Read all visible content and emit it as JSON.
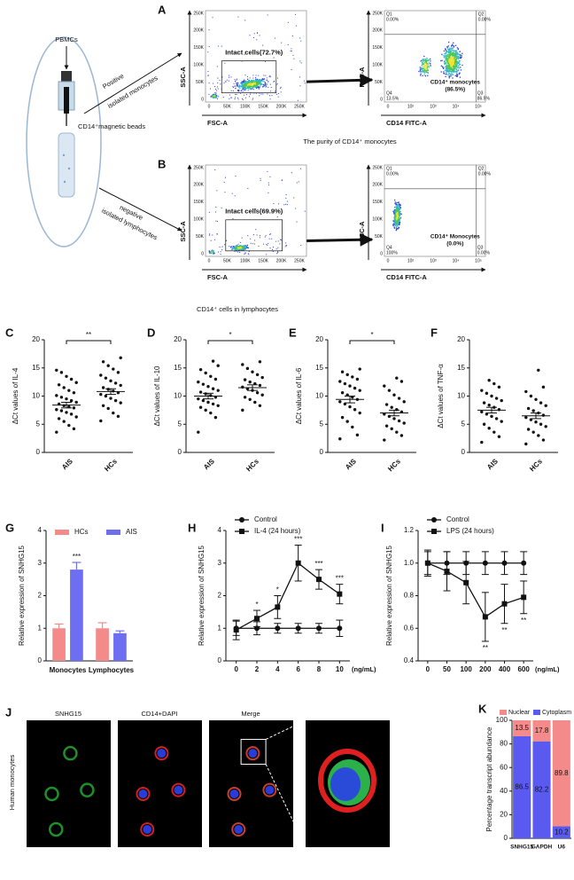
{
  "panel_labels": [
    "A",
    "B",
    "C",
    "D",
    "E",
    "F",
    "G",
    "H",
    "I",
    "J",
    "K"
  ],
  "diagram": {
    "source": "PBMCs",
    "positive": [
      "Positive",
      "isolated monocytes"
    ],
    "beads": "CD14⁺magnetic beads",
    "negative": [
      "negative",
      "isolated lymphocytes"
    ]
  },
  "flow": [
    {
      "caption": "The purity of CD14⁺ monocytes",
      "gate": {
        "label": "Intact cells(72.7%)",
        "xlabel": "FSC-A",
        "ylabel": "SSC-A",
        "xticks": [
          "0",
          "50K",
          "100K",
          "150K",
          "200K",
          "250K"
        ],
        "yticks": [
          "0",
          "50K",
          "100K",
          "150K",
          "200K",
          "250K"
        ]
      },
      "quad": {
        "xlabel": "CD14 FITC-A",
        "ylabel": "FSC-A",
        "xticks": [
          "0",
          "10²",
          "10³",
          "10⁴",
          "10⁵"
        ],
        "yticks": [
          "0",
          "50K",
          "100K",
          "150K",
          "200K",
          "250K"
        ],
        "quadrants": [
          {
            "name": "Q1",
            "value": "0.00%"
          },
          {
            "name": "Q2",
            "value": "0.00%"
          },
          {
            "name": "Q4",
            "value": "13.5%"
          },
          {
            "name": "Q3",
            "value": "86.5%"
          }
        ],
        "population": [
          "CD14⁺ monocytes",
          "(86.5%)"
        ]
      }
    },
    {
      "caption": "CD14⁺ cells in lymphocytes",
      "gate": {
        "label": "Intact cells(69.9%)",
        "xlabel": "FSC-A",
        "ylabel": "SSC-A",
        "xticks": [
          "0",
          "50K",
          "100K",
          "150K",
          "200K",
          "250K"
        ],
        "yticks": [
          "0",
          "50K",
          "100K",
          "150K",
          "200K",
          "250K"
        ]
      },
      "quad": {
        "xlabel": "CD14 FITC-A",
        "ylabel": "FSC-A",
        "xticks": [
          "0",
          "10²",
          "10³",
          "10⁴",
          "10⁵"
        ],
        "yticks": [
          "0",
          "50K",
          "100K",
          "150K",
          "200K",
          "250K"
        ],
        "quadrants": [
          {
            "name": "Q1",
            "value": "0.00%"
          },
          {
            "name": "Q2",
            "value": "0.00%"
          },
          {
            "name": "Q4",
            "value": "100%"
          },
          {
            "name": "Q3",
            "value": "0.00%"
          }
        ],
        "population": [
          "CD14⁺ Monocytes",
          "(0.0%)"
        ]
      }
    }
  ],
  "microscopy": {
    "columns": [
      "SNHG15",
      "CD14+DAPI",
      "Merge"
    ],
    "row": "Human monocytes"
  },
  "chart_data": [
    {
      "type": "dot",
      "ylabel": "ΔCt values of IL-4",
      "ylim": [
        0,
        20
      ],
      "yticks": [
        0,
        5,
        10,
        15,
        20
      ],
      "significance": "**",
      "groups": [
        {
          "name": "AIS",
          "values": [
            3.6,
            4.2,
            4.8,
            5.5,
            6,
            6.3,
            6.8,
            7.1,
            7.4,
            7.6,
            7.9,
            8.1,
            8.3,
            8.6,
            8.9,
            9.2,
            9.5,
            9.8,
            10.1,
            10.6,
            11,
            11.5,
            12,
            12.4,
            13,
            13.5,
            14.2,
            14.6
          ],
          "mean": 8.4,
          "sem": 0.5
        },
        {
          "name": "HCs",
          "values": [
            5.6,
            6.4,
            7,
            7.8,
            8.3,
            8.8,
            9.2,
            9.6,
            10,
            10.3,
            10.6,
            10.9,
            11.2,
            11.5,
            11.9,
            12.3,
            12.7,
            13.2,
            13.7,
            14.2,
            14.8,
            15.4,
            16.1,
            16.8
          ],
          "mean": 10.8,
          "sem": 0.5
        }
      ]
    },
    {
      "type": "dot",
      "ylabel": "ΔCt values of IL-10",
      "ylim": [
        0,
        20
      ],
      "yticks": [
        0,
        5,
        10,
        15,
        20
      ],
      "significance": "*",
      "groups": [
        {
          "name": "AIS",
          "values": [
            3.6,
            6.2,
            7,
            7.5,
            8,
            8.3,
            8.6,
            8.9,
            9.2,
            9.5,
            9.8,
            10.1,
            10.4,
            10.7,
            11,
            11.3,
            11.7,
            12.1,
            12.5,
            13,
            13.5,
            14.1,
            14.7,
            15.4,
            16.2
          ],
          "mean": 10,
          "sem": 0.5
        },
        {
          "name": "HCs",
          "values": [
            7.5,
            8.3,
            8.9,
            9.4,
            9.8,
            10.2,
            10.6,
            11,
            11.3,
            11.6,
            11.9,
            12.2,
            12.5,
            12.9,
            13.3,
            13.8,
            14.3,
            14.9,
            15.6,
            16.1
          ],
          "mean": 11.5,
          "sem": 0.5
        }
      ]
    },
    {
      "type": "dot",
      "ylabel": "ΔCt values of IL-6",
      "ylim": [
        0,
        20
      ],
      "yticks": [
        0,
        5,
        10,
        15,
        20
      ],
      "significance": "*",
      "groups": [
        {
          "name": "AIS",
          "values": [
            2.4,
            3.1,
            4.5,
            5.5,
            6.2,
            7,
            7.6,
            8.1,
            8.6,
            9,
            9.4,
            9.8,
            10.2,
            10.6,
            11,
            11.4,
            11.8,
            12.2,
            12.6,
            13,
            13.4,
            13.8,
            14.3,
            14.8
          ],
          "mean": 9.4,
          "sem": 0.6
        },
        {
          "name": "HCs",
          "values": [
            2.2,
            3,
            3.6,
            4.2,
            4.7,
            5.2,
            5.6,
            6,
            6.4,
            6.8,
            7.2,
            7.6,
            8,
            8.5,
            9,
            9.6,
            10.2,
            11,
            11.8,
            12.6,
            13.2
          ],
          "mean": 7,
          "sem": 0.5
        }
      ]
    },
    {
      "type": "dot",
      "ylabel": "ΔCt values of TNF-α",
      "ylim": [
        0,
        20
      ],
      "yticks": [
        0,
        5,
        10,
        15,
        20
      ],
      "groups": [
        {
          "name": "AIS",
          "values": [
            1.8,
            2.8,
            3.6,
            4.3,
            5,
            5.5,
            6,
            6.4,
            6.8,
            7.2,
            7.6,
            8,
            8.4,
            8.8,
            9.2,
            9.6,
            10,
            10.5,
            11,
            11.6,
            12.2,
            12.8
          ],
          "mean": 7.5,
          "sem": 0.5
        },
        {
          "name": "HCs",
          "values": [
            1.5,
            2.2,
            3,
            3.6,
            4.1,
            4.6,
            5,
            5.4,
            5.8,
            6.2,
            6.6,
            7,
            7.4,
            7.8,
            8.3,
            8.8,
            9.4,
            10,
            10.8,
            11.6,
            14.6
          ],
          "mean": 6.5,
          "sem": 0.5
        }
      ]
    },
    {
      "type": "bar",
      "ylabel": "Relative expression of SNHG15",
      "categories": [
        "Monocytes",
        "Lymphocytes"
      ],
      "ylim": [
        0,
        4
      ],
      "yticks": [
        0,
        1,
        2,
        3,
        4
      ],
      "series": [
        {
          "name": "HCs",
          "color": "#f48a8a",
          "values": [
            1,
            1
          ],
          "errors": [
            0.13,
            0.17
          ]
        },
        {
          "name": "AIS",
          "color": "#6e6ef0",
          "values": [
            2.8,
            0.85
          ],
          "errors": [
            0.22,
            0.07
          ],
          "annotations": [
            "***",
            null
          ]
        }
      ]
    },
    {
      "type": "line",
      "ylabel": "Relative expression of SNHG15",
      "xlabel": "(ng/mL)",
      "x": [
        0,
        2,
        4,
        6,
        8,
        10
      ],
      "xlim": [
        -1,
        11
      ],
      "xticks": [
        0,
        2,
        4,
        6,
        8,
        10
      ],
      "ylim": [
        0,
        4
      ],
      "yticks": [
        0,
        1,
        2,
        3,
        4
      ],
      "series": [
        {
          "name": "Control",
          "color": "#111111",
          "marker": "circle",
          "values": [
            1,
            1,
            1,
            1,
            1,
            1
          ],
          "errors": [
            0.22,
            0.2,
            0.15,
            0.15,
            0.15,
            0.25
          ]
        },
        {
          "name": "IL-4 (24 hours)",
          "color": "#111111",
          "marker": "square",
          "values": [
            0.95,
            1.3,
            1.65,
            3,
            2.5,
            2.05
          ],
          "errors": [
            0.3,
            0.25,
            0.35,
            0.55,
            0.3,
            0.3
          ],
          "annotations": [
            null,
            "*",
            "*",
            "***",
            "***",
            "***"
          ],
          "annotation_position": "above"
        }
      ]
    },
    {
      "type": "line",
      "ylabel": "Relative expression of SNHG15",
      "xlabel": "(ng/mL)",
      "categories": [
        "0",
        "50",
        "100",
        "200",
        "400",
        "600"
      ],
      "ylim": [
        0.4,
        1.2
      ],
      "yticks": [
        0.4,
        0.6,
        0.8,
        {
          "value": 1,
          "label": "1.0"
        },
        1.2
      ],
      "series": [
        {
          "name": "Control",
          "color": "#111111",
          "marker": "circle",
          "values": [
            1,
            1,
            1,
            1,
            1,
            1
          ],
          "errors": [
            0.07,
            0.07,
            0.07,
            0.07,
            0.07,
            0.07
          ]
        },
        {
          "name": "LPS (24 hours)",
          "color": "#111111",
          "marker": "square",
          "values": [
            1,
            0.95,
            0.88,
            0.67,
            0.75,
            0.79
          ],
          "errors": [
            0.08,
            0.12,
            0.13,
            0.15,
            0.12,
            0.1
          ],
          "annotations": [
            null,
            null,
            null,
            "**",
            "**",
            "**"
          ],
          "annotation_position": "below"
        }
      ]
    },
    {
      "type": "stacked_bar",
      "ylabel": "Percentage transcript abundance",
      "categories": [
        "SNHG15",
        "GAPDH",
        "U6"
      ],
      "ylim": [
        0,
        100
      ],
      "yticks": [
        0,
        20,
        40,
        60,
        80,
        100
      ],
      "series": [
        {
          "name": "Nuclear",
          "color": "#f48a8a",
          "values": [
            13.5,
            17.8,
            89.8
          ]
        },
        {
          "name": "Cytoplasm",
          "color": "#5a5af0",
          "values": [
            86.5,
            82.2,
            10.2
          ]
        }
      ]
    }
  ]
}
